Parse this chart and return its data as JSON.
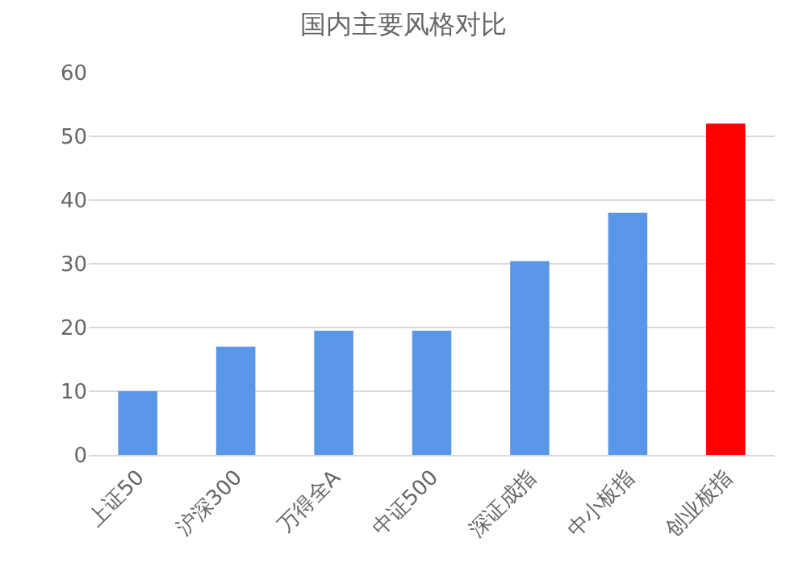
{
  "chart_data": {
    "type": "bar",
    "title": "国内主要风格对比",
    "categories": [
      "上证50",
      "沪深300",
      "万得全A",
      "中证500",
      "深证成指",
      "中小板指",
      "创业板指"
    ],
    "values": [
      10,
      17,
      19.5,
      19.5,
      30.4,
      38,
      52
    ],
    "colors": [
      "#5b97e8",
      "#5b97e8",
      "#5b97e8",
      "#5b97e8",
      "#5b97e8",
      "#5b97e8",
      "#ff0000"
    ],
    "ylim": [
      0,
      60
    ],
    "yticks": [
      0,
      10,
      20,
      30,
      40,
      50,
      60
    ],
    "grid": "y",
    "legend": false
  }
}
